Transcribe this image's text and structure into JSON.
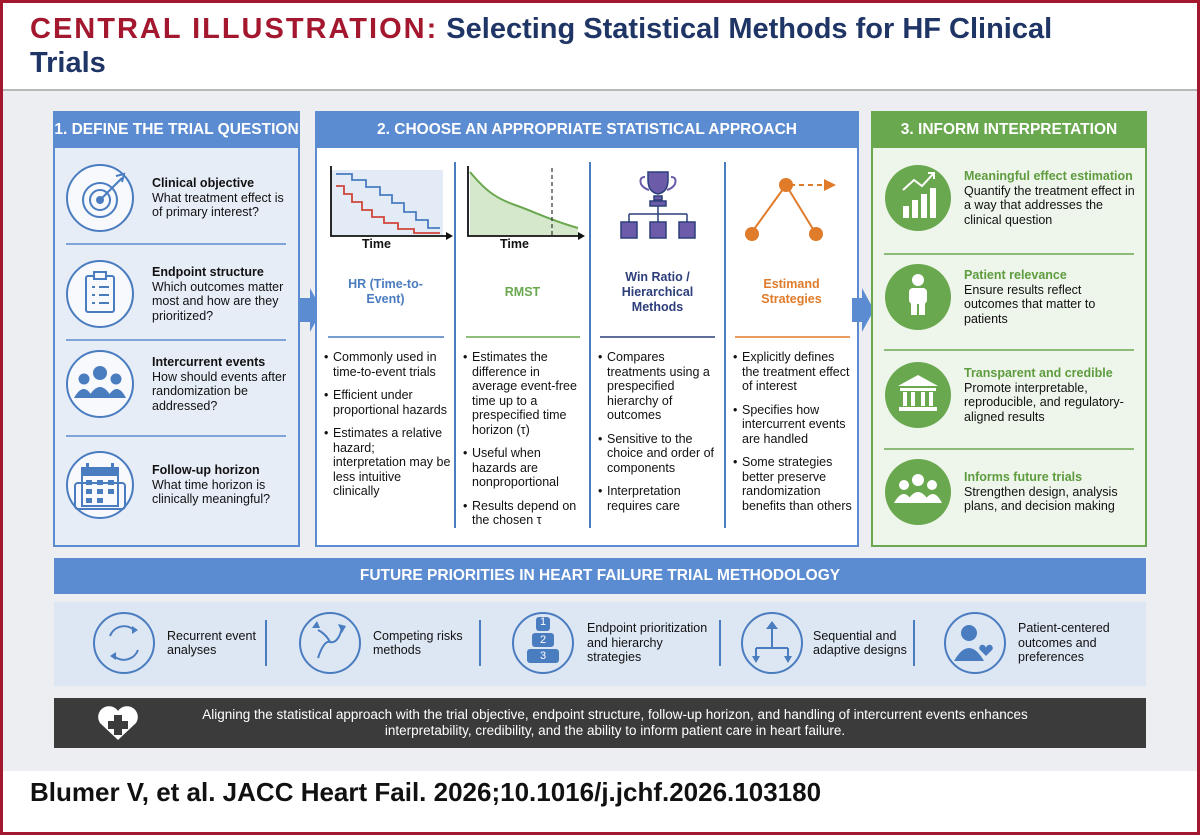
{
  "header": {
    "title_prefix": "CENTRAL ILLUSTRATION:",
    "title": "Selecting Statistical Methods for HF Clinical Trials"
  },
  "panels": [
    {
      "title": "1. DEFINE THE TRIAL QUESTION",
      "items": [
        {
          "heading": "Clinical objective",
          "text": "What treatment effect is of primary interest?"
        },
        {
          "heading": "Endpoint structure",
          "text": "Which outcomes matter most and how are they prioritized?"
        },
        {
          "heading": "Intercurrent events",
          "text": "How should events after randomization be addressed?"
        },
        {
          "heading": "Follow-up horizon",
          "text": "What time horizon is clinically meaningful?"
        }
      ]
    },
    {
      "title": "2. CHOOSE AN APPROPRIATE STATISTICAL APPROACH",
      "methods": [
        {
          "axis_label": "Time",
          "name": "HR (Time-to-Event)",
          "bullets": [
            "Commonly used in time-to-event trials",
            "Efficient under proportional hazards",
            "Estimates a relative hazard; interpretation may be less intuitive clinically"
          ]
        },
        {
          "axis_label": "Time",
          "name": "RMST",
          "bullets": [
            "Estimates the difference in average event-free time up to a prespecified time horizon (τ)",
            "Useful when hazards are nonproportional",
            "Results depend on the chosen τ"
          ]
        },
        {
          "name": "Win Ratio / Hierarchical Methods",
          "bullets": [
            "Compares treatments using a prespecified hierarchy of outcomes",
            "Sensitive to the choice and order of components",
            "Interpretation requires care"
          ]
        },
        {
          "name": "Estimand Strategies",
          "bullets": [
            "Explicitly defines the treatment effect of interest",
            "Specifies how intercurrent events are handled",
            "Some strategies better preserve randomization benefits than others"
          ]
        }
      ]
    },
    {
      "title": "3. INFORM INTERPRETATION",
      "items": [
        {
          "heading": "Meaningful effect estimation",
          "text": "Quantify the treatment effect in a way that addresses the clinical question"
        },
        {
          "heading": "Patient relevance",
          "text": "Ensure results reflect outcomes that matter to patients"
        },
        {
          "heading": "Transparent and credible",
          "text": "Promote interpretable, reproducible, and regulatory-aligned results"
        },
        {
          "heading": "Informs future trials",
          "text": "Strengthen design, analysis plans, and decision making"
        }
      ]
    }
  ],
  "priorities": {
    "title": "FUTURE PRIORITIES IN HEART FAILURE TRIAL METHODOLOGY",
    "items": [
      "Recurrent event analyses",
      "Competing risks methods",
      "Endpoint prioritization and hierarchy strategies",
      "Sequential and adaptive designs",
      "Patient-centered outcomes and preferences"
    ],
    "icon_numbers": [
      "1",
      "2",
      "3"
    ]
  },
  "footer": {
    "text": "Aligning the statistical approach with the trial objective, endpoint structure, follow-up horizon, and handling of intercurrent events enhances interpretability, credibility, and the ability to inform patient care in heart failure."
  },
  "citation": "Blumer V, et al. JACC Heart Fail. 2026;10.1016/j.jchf.2026.103180"
}
